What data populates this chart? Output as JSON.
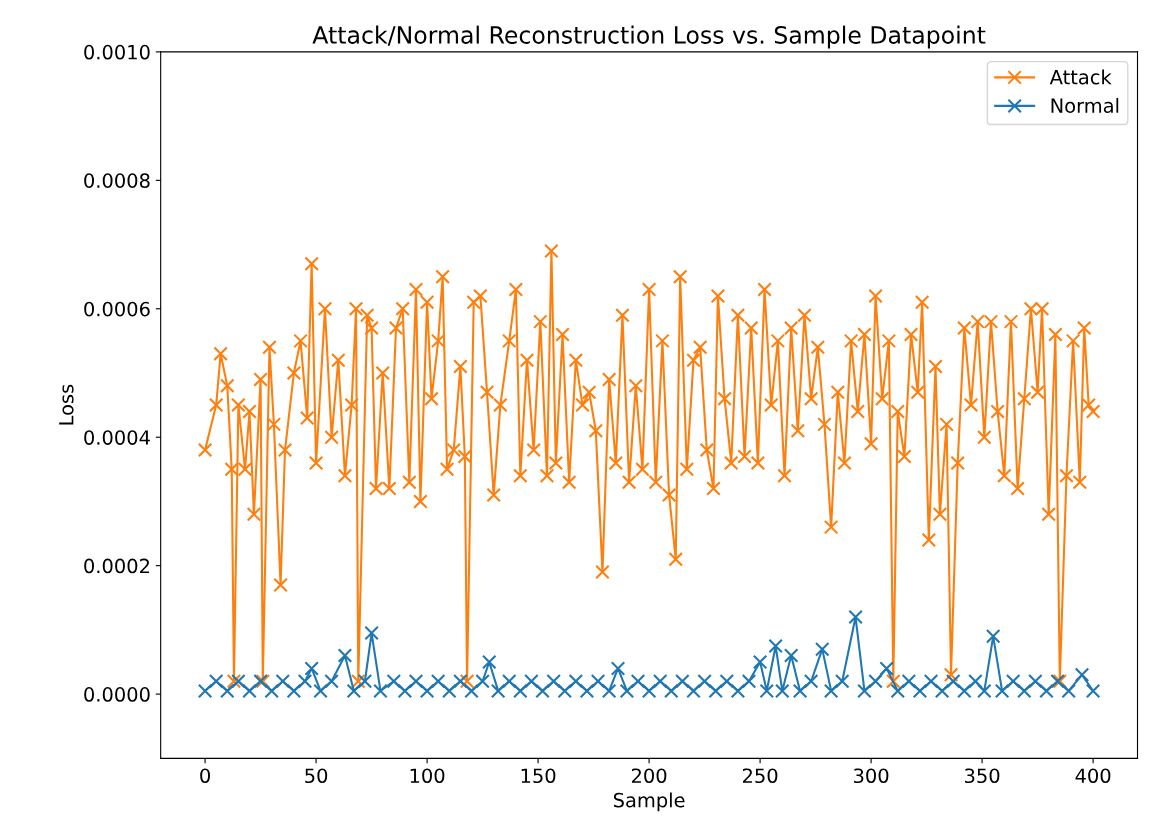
{
  "chart_data": {
    "type": "line",
    "title": "Attack/Normal Reconstruction Loss vs. Sample Datapoint",
    "xlabel": "Sample",
    "ylabel": "Loss",
    "xlim": [
      -20,
      420
    ],
    "ylim": [
      -0.0001,
      0.001
    ],
    "xticks": [
      0,
      50,
      100,
      150,
      200,
      250,
      300,
      350,
      400
    ],
    "yticks": [
      {
        "value": 0,
        "label": "0.0000"
      },
      {
        "value": 0.0002,
        "label": "0.0002"
      },
      {
        "value": 0.0004,
        "label": "0.0004"
      },
      {
        "value": 0.0006,
        "label": "0.0006"
      },
      {
        "value": 0.0008,
        "label": "0.0008"
      },
      {
        "value": 0.001,
        "label": "0.0010"
      }
    ],
    "grid": false,
    "legend": "top right",
    "marker": "cross",
    "line_style": "solid",
    "series": [
      {
        "name": "Attack",
        "color": "#ff7f0e",
        "x": [
          0,
          5,
          7,
          10,
          12,
          13,
          15,
          18,
          20,
          22,
          25,
          26,
          29,
          31,
          34,
          36,
          40,
          43,
          46,
          48,
          50,
          54,
          57,
          60,
          63,
          66,
          68,
          69,
          73,
          75,
          77,
          80,
          83,
          86,
          89,
          92,
          95,
          97,
          100,
          102,
          105,
          107,
          109,
          112,
          115,
          117,
          118,
          121,
          124,
          127,
          130,
          133,
          137,
          140,
          142,
          145,
          148,
          151,
          154,
          156,
          158,
          161,
          164,
          167,
          170,
          173,
          176,
          179,
          182,
          185,
          188,
          191,
          194,
          197,
          200,
          203,
          206,
          209,
          212,
          214,
          217,
          220,
          223,
          226,
          229,
          231,
          234,
          237,
          240,
          243,
          246,
          249,
          252,
          255,
          258,
          261,
          264,
          267,
          270,
          273,
          276,
          279,
          282,
          285,
          288,
          291,
          294,
          297,
          300,
          302,
          305,
          308,
          310,
          312,
          315,
          318,
          321,
          323,
          326,
          329,
          331,
          334,
          336,
          339,
          342,
          345,
          348,
          351,
          354,
          357,
          360,
          363,
          366,
          369,
          372,
          375,
          377,
          380,
          383,
          385,
          388,
          391,
          394,
          396,
          398,
          400
        ],
        "values": [
          0.00038,
          0.00045,
          0.00053,
          0.00048,
          0.00035,
          2e-05,
          0.00045,
          0.00035,
          0.00044,
          0.00028,
          0.00049,
          2e-05,
          0.00054,
          0.00042,
          0.00017,
          0.00038,
          0.0005,
          0.00055,
          0.00043,
          0.00067,
          0.00036,
          0.0006,
          0.0004,
          0.00052,
          0.00034,
          0.00045,
          0.0006,
          2e-05,
          0.00059,
          0.00057,
          0.00032,
          0.0005,
          0.00032,
          0.00057,
          0.0006,
          0.00033,
          0.00063,
          0.0003,
          0.00061,
          0.00046,
          0.00055,
          0.00065,
          0.00035,
          0.00038,
          0.00051,
          0.00037,
          2e-05,
          0.00061,
          0.00062,
          0.00047,
          0.00031,
          0.00045,
          0.00055,
          0.00063,
          0.00034,
          0.00052,
          0.00038,
          0.00058,
          0.00034,
          0.00069,
          0.00036,
          0.00056,
          0.00033,
          0.00052,
          0.00045,
          0.00047,
          0.00041,
          0.00019,
          0.00049,
          0.00036,
          0.00059,
          0.00033,
          0.00048,
          0.00035,
          0.00063,
          0.00033,
          0.00055,
          0.00031,
          0.00021,
          0.00065,
          0.00035,
          0.00052,
          0.00054,
          0.00038,
          0.00032,
          0.00062,
          0.00046,
          0.00036,
          0.00059,
          0.00037,
          0.00057,
          0.00036,
          0.00063,
          0.00045,
          0.00055,
          0.00034,
          0.00057,
          0.00041,
          0.00059,
          0.00046,
          0.00054,
          0.00042,
          0.00026,
          0.00047,
          0.00036,
          0.00055,
          0.00044,
          0.00056,
          0.00039,
          0.00062,
          0.00046,
          0.00055,
          2e-05,
          0.00044,
          0.00037,
          0.00056,
          0.00047,
          0.00061,
          0.00024,
          0.00051,
          0.00028,
          0.00042,
          3e-05,
          0.00036,
          0.00057,
          0.00045,
          0.00058,
          0.0004,
          0.00058,
          0.00044,
          0.00034,
          0.00058,
          0.00032,
          0.00046,
          0.0006,
          0.00047,
          0.0006,
          0.00028,
          0.00056,
          2e-05,
          0.00034,
          0.00055,
          0.00033,
          0.00057,
          0.00045,
          0.00044
        ]
      },
      {
        "name": "Normal",
        "color": "#1f77b4",
        "x": [
          0,
          5,
          10,
          15,
          20,
          25,
          30,
          35,
          40,
          45,
          48,
          52,
          57,
          63,
          67,
          72,
          75,
          79,
          85,
          90,
          95,
          100,
          105,
          110,
          115,
          120,
          125,
          128,
          132,
          137,
          142,
          147,
          152,
          157,
          162,
          167,
          172,
          177,
          182,
          186,
          190,
          195,
          200,
          205,
          210,
          215,
          220,
          225,
          230,
          235,
          240,
          245,
          250,
          253,
          257,
          260,
          264,
          268,
          273,
          278,
          282,
          287,
          293,
          297,
          302,
          307,
          312,
          317,
          322,
          327,
          332,
          337,
          342,
          347,
          351,
          355,
          359,
          364,
          369,
          374,
          379,
          384,
          389,
          395,
          400
        ],
        "values": [
          5e-06,
          2e-05,
          5e-06,
          2e-05,
          5e-06,
          2e-05,
          5e-06,
          2e-05,
          5e-06,
          2e-05,
          4e-05,
          5e-06,
          2e-05,
          6e-05,
          5e-06,
          2e-05,
          9.5e-05,
          5e-06,
          2e-05,
          5e-06,
          2e-05,
          5e-06,
          2e-05,
          5e-06,
          2e-05,
          5e-06,
          2e-05,
          5e-05,
          5e-06,
          2e-05,
          5e-06,
          2e-05,
          5e-06,
          2e-05,
          5e-06,
          2e-05,
          5e-06,
          2e-05,
          5e-06,
          4e-05,
          5e-06,
          2e-05,
          5e-06,
          2e-05,
          5e-06,
          2e-05,
          5e-06,
          2e-05,
          5e-06,
          2e-05,
          5e-06,
          2e-05,
          5e-05,
          5e-06,
          7.5e-05,
          5e-06,
          6e-05,
          5e-06,
          2e-05,
          7e-05,
          5e-06,
          2e-05,
          0.00012,
          5e-06,
          2e-05,
          4e-05,
          5e-06,
          2e-05,
          5e-06,
          2e-05,
          5e-06,
          2e-05,
          5e-06,
          2e-05,
          5e-06,
          9e-05,
          5e-06,
          2e-05,
          5e-06,
          2e-05,
          5e-06,
          2e-05,
          5e-06,
          3e-05,
          5e-06
        ]
      }
    ]
  }
}
